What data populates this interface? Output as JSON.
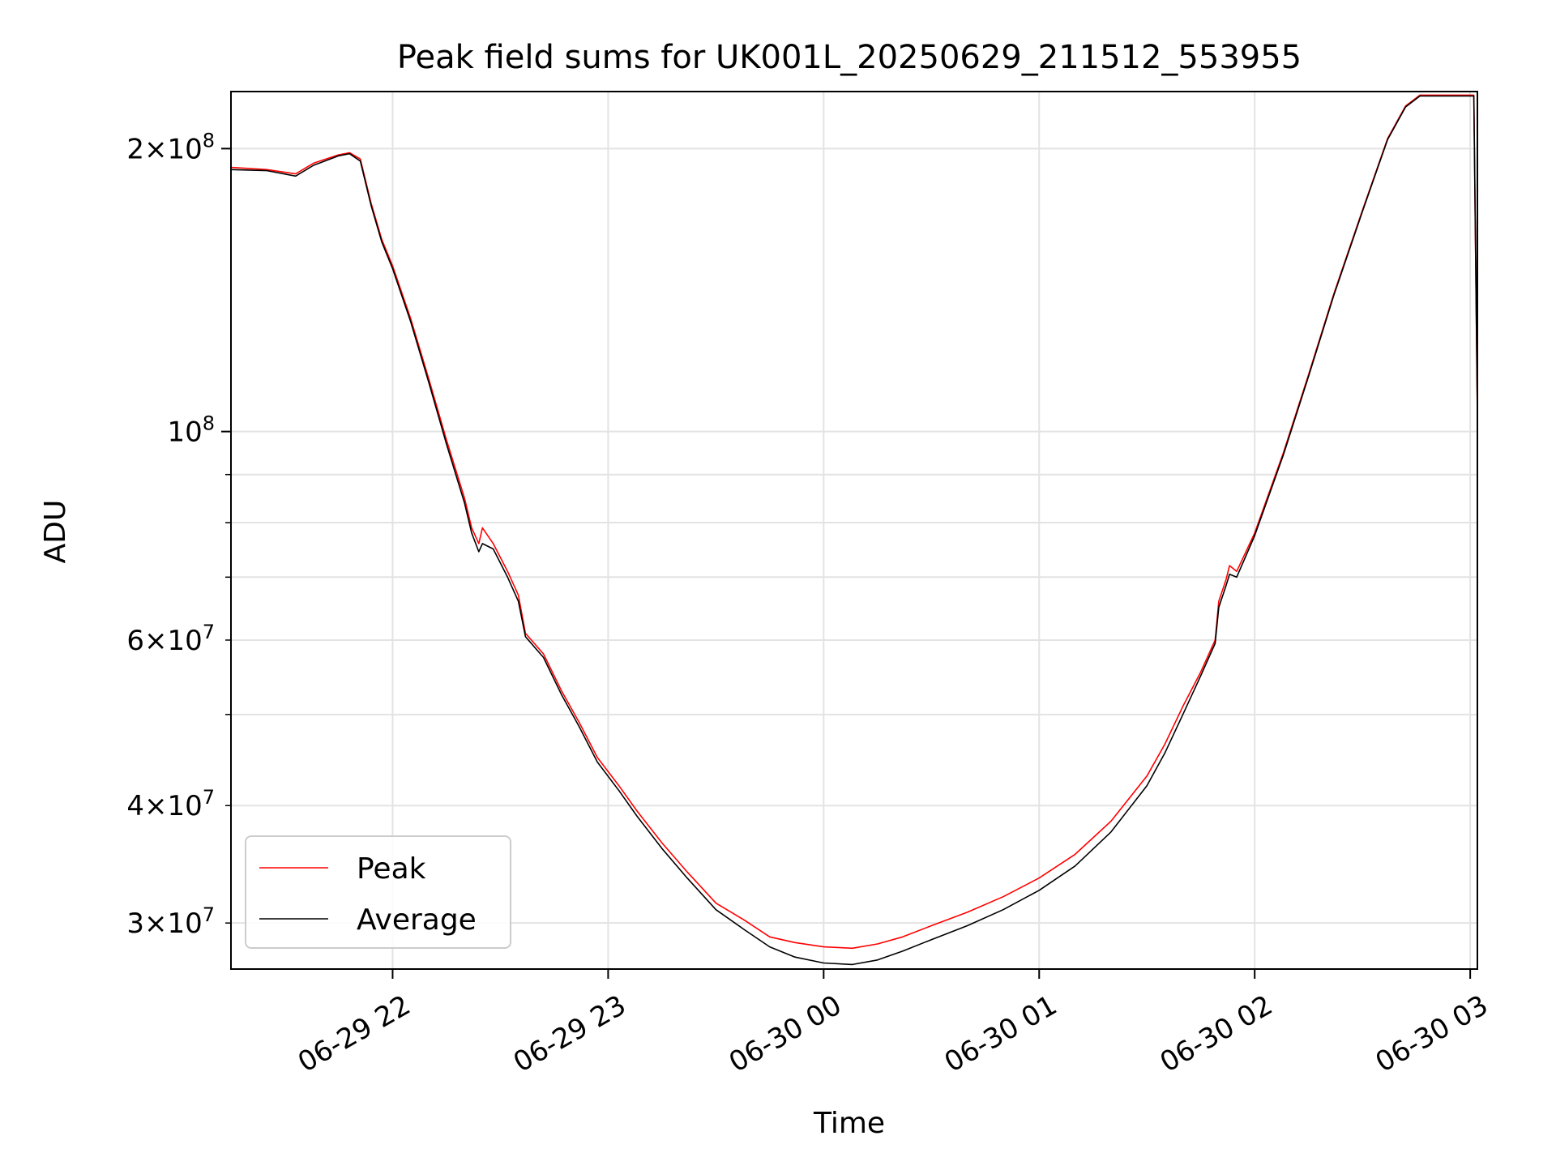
{
  "colors": {
    "background": "#ffffff",
    "grid": "#e3e3e3",
    "axes": "#000000",
    "peak": "#ff0000",
    "average": "#000000",
    "legend_border": "#cccccc"
  },
  "chart_data": {
    "type": "line",
    "title": "Peak field sums for UK001L_20250629_211512_553955",
    "xlabel": "Time",
    "ylabel": "ADU",
    "yscale": "log",
    "xlim": [
      "2025-06-29 21:15",
      "2025-06-30 03:02"
    ],
    "ylim": [
      26800000,
      230000000
    ],
    "grid": true,
    "legend_position": "lower-left",
    "x_ticks": [
      {
        "t": "2025-06-29 22:00",
        "label": "06-29 22"
      },
      {
        "t": "2025-06-29 23:00",
        "label": "06-29 23"
      },
      {
        "t": "2025-06-30 00:00",
        "label": "06-30 00"
      },
      {
        "t": "2025-06-30 01:00",
        "label": "06-30 01"
      },
      {
        "t": "2025-06-30 02:00",
        "label": "06-30 02"
      },
      {
        "t": "2025-06-30 03:00",
        "label": "06-30 03"
      }
    ],
    "y_major_ticks": [
      {
        "value": 100000000,
        "base": "10",
        "exp": "8"
      },
      {
        "value": 200000000,
        "mant": "2",
        "base": "10",
        "exp": "8"
      }
    ],
    "y_minor_ticks": [
      {
        "value": 30000000,
        "mant": "3",
        "base": "10",
        "exp": "7"
      },
      {
        "value": 40000000,
        "mant": "4",
        "base": "10",
        "exp": "7"
      },
      {
        "value": 50000000
      },
      {
        "value": 60000000,
        "mant": "6",
        "base": "10",
        "exp": "7"
      },
      {
        "value": 70000000
      },
      {
        "value": 80000000
      },
      {
        "value": 90000000
      }
    ],
    "series": [
      {
        "name": "Peak",
        "color": "#ff0000",
        "points": [
          [
            "2025-06-29 21:15",
            191000000
          ],
          [
            "2025-06-29 21:25",
            190000000
          ],
          [
            "2025-06-29 21:33",
            188000000
          ],
          [
            "2025-06-29 21:38",
            193000000
          ],
          [
            "2025-06-29 21:45",
            197000000
          ],
          [
            "2025-06-29 21:48",
            198000000
          ],
          [
            "2025-06-29 21:51",
            195000000
          ],
          [
            "2025-06-29 21:54",
            175000000
          ],
          [
            "2025-06-29 21:57",
            160000000
          ],
          [
            "2025-06-29 22:00",
            150000000
          ],
          [
            "2025-06-29 22:05",
            132000000
          ],
          [
            "2025-06-29 22:10",
            114000000
          ],
          [
            "2025-06-29 22:15",
            98000000
          ],
          [
            "2025-06-29 22:20",
            85000000
          ],
          [
            "2025-06-29 22:22",
            79000000
          ],
          [
            "2025-06-29 22:24",
            76000000
          ],
          [
            "2025-06-29 22:25",
            79000000
          ],
          [
            "2025-06-29 22:28",
            76000000
          ],
          [
            "2025-06-29 22:32",
            71000000
          ],
          [
            "2025-06-29 22:35",
            67000000
          ],
          [
            "2025-06-29 22:37",
            61000000
          ],
          [
            "2025-06-29 22:42",
            58000000
          ],
          [
            "2025-06-29 22:47",
            53000000
          ],
          [
            "2025-06-29 22:52",
            49000000
          ],
          [
            "2025-06-29 22:57",
            45000000
          ],
          [
            "2025-06-29 23:03",
            42000000
          ],
          [
            "2025-06-29 23:08",
            39500000
          ],
          [
            "2025-06-29 23:15",
            36500000
          ],
          [
            "2025-06-29 23:22",
            34000000
          ],
          [
            "2025-06-29 23:30",
            31500000
          ],
          [
            "2025-06-29 23:38",
            30200000
          ],
          [
            "2025-06-29 23:45",
            29000000
          ],
          [
            "2025-06-29 23:52",
            28600000
          ],
          [
            "2025-06-30 00:00",
            28300000
          ],
          [
            "2025-06-30 00:08",
            28200000
          ],
          [
            "2025-06-30 00:15",
            28500000
          ],
          [
            "2025-06-30 00:22",
            29000000
          ],
          [
            "2025-06-30 00:30",
            29800000
          ],
          [
            "2025-06-30 00:40",
            30800000
          ],
          [
            "2025-06-30 00:50",
            32000000
          ],
          [
            "2025-06-30 01:00",
            33500000
          ],
          [
            "2025-06-30 01:10",
            35500000
          ],
          [
            "2025-06-30 01:20",
            38500000
          ],
          [
            "2025-06-30 01:30",
            43000000
          ],
          [
            "2025-06-30 01:35",
            46500000
          ],
          [
            "2025-06-30 01:40",
            51000000
          ],
          [
            "2025-06-30 01:45",
            55500000
          ],
          [
            "2025-06-30 01:49",
            60000000
          ],
          [
            "2025-06-30 01:50",
            66000000
          ],
          [
            "2025-06-30 01:52",
            69500000
          ],
          [
            "2025-06-30 01:53",
            72000000
          ],
          [
            "2025-06-30 01:55",
            71000000
          ],
          [
            "2025-06-30 02:00",
            78000000
          ],
          [
            "2025-06-30 02:08",
            95000000
          ],
          [
            "2025-06-30 02:15",
            115000000
          ],
          [
            "2025-06-30 02:22",
            140000000
          ],
          [
            "2025-06-30 02:30",
            172000000
          ],
          [
            "2025-06-30 02:37",
            205000000
          ],
          [
            "2025-06-30 02:42",
            222000000
          ],
          [
            "2025-06-30 02:46",
            228000000
          ],
          [
            "2025-06-30 03:01",
            228000000
          ],
          [
            "2025-06-30 03:02",
            103000000
          ]
        ]
      },
      {
        "name": "Average",
        "color": "#000000",
        "points": [
          [
            "2025-06-29 21:15",
            190000000
          ],
          [
            "2025-06-29 21:25",
            189500000
          ],
          [
            "2025-06-29 21:33",
            187000000
          ],
          [
            "2025-06-29 21:38",
            192000000
          ],
          [
            "2025-06-29 21:45",
            196500000
          ],
          [
            "2025-06-29 21:48",
            197500000
          ],
          [
            "2025-06-29 21:51",
            194000000
          ],
          [
            "2025-06-29 21:54",
            174000000
          ],
          [
            "2025-06-29 21:57",
            159000000
          ],
          [
            "2025-06-29 22:00",
            149000000
          ],
          [
            "2025-06-29 22:05",
            131000000
          ],
          [
            "2025-06-29 22:10",
            113000000
          ],
          [
            "2025-06-29 22:15",
            97000000
          ],
          [
            "2025-06-29 22:20",
            84000000
          ],
          [
            "2025-06-29 22:22",
            78000000
          ],
          [
            "2025-06-29 22:24",
            74500000
          ],
          [
            "2025-06-29 22:25",
            76000000
          ],
          [
            "2025-06-29 22:28",
            75000000
          ],
          [
            "2025-06-29 22:32",
            70000000
          ],
          [
            "2025-06-29 22:35",
            66000000
          ],
          [
            "2025-06-29 22:37",
            60500000
          ],
          [
            "2025-06-29 22:42",
            57500000
          ],
          [
            "2025-06-29 22:47",
            52500000
          ],
          [
            "2025-06-29 22:52",
            48500000
          ],
          [
            "2025-06-29 22:57",
            44500000
          ],
          [
            "2025-06-29 23:03",
            41500000
          ],
          [
            "2025-06-29 23:08",
            39000000
          ],
          [
            "2025-06-29 23:15",
            36000000
          ],
          [
            "2025-06-29 23:22",
            33500000
          ],
          [
            "2025-06-29 23:30",
            31000000
          ],
          [
            "2025-06-29 23:38",
            29500000
          ],
          [
            "2025-06-29 23:45",
            28300000
          ],
          [
            "2025-06-29 23:52",
            27600000
          ],
          [
            "2025-06-30 00:00",
            27200000
          ],
          [
            "2025-06-30 00:08",
            27100000
          ],
          [
            "2025-06-30 00:15",
            27400000
          ],
          [
            "2025-06-30 00:22",
            28000000
          ],
          [
            "2025-06-30 00:30",
            28800000
          ],
          [
            "2025-06-30 00:40",
            29800000
          ],
          [
            "2025-06-30 00:50",
            31000000
          ],
          [
            "2025-06-30 01:00",
            32500000
          ],
          [
            "2025-06-30 01:10",
            34500000
          ],
          [
            "2025-06-30 01:20",
            37500000
          ],
          [
            "2025-06-30 01:30",
            42000000
          ],
          [
            "2025-06-30 01:35",
            45500000
          ],
          [
            "2025-06-30 01:40",
            50000000
          ],
          [
            "2025-06-30 01:45",
            55000000
          ],
          [
            "2025-06-30 01:49",
            59500000
          ],
          [
            "2025-06-30 01:50",
            65000000
          ],
          [
            "2025-06-30 01:52",
            68500000
          ],
          [
            "2025-06-30 01:53",
            70500000
          ],
          [
            "2025-06-30 01:55",
            70000000
          ],
          [
            "2025-06-30 02:00",
            77500000
          ],
          [
            "2025-06-30 02:08",
            94500000
          ],
          [
            "2025-06-30 02:15",
            114500000
          ],
          [
            "2025-06-30 02:22",
            139500000
          ],
          [
            "2025-06-30 02:30",
            171500000
          ],
          [
            "2025-06-30 02:37",
            204500000
          ],
          [
            "2025-06-30 02:42",
            221500000
          ],
          [
            "2025-06-30 02:46",
            227500000
          ],
          [
            "2025-06-30 03:01",
            227500000
          ],
          [
            "2025-06-30 03:02",
            105000000
          ]
        ]
      }
    ]
  }
}
